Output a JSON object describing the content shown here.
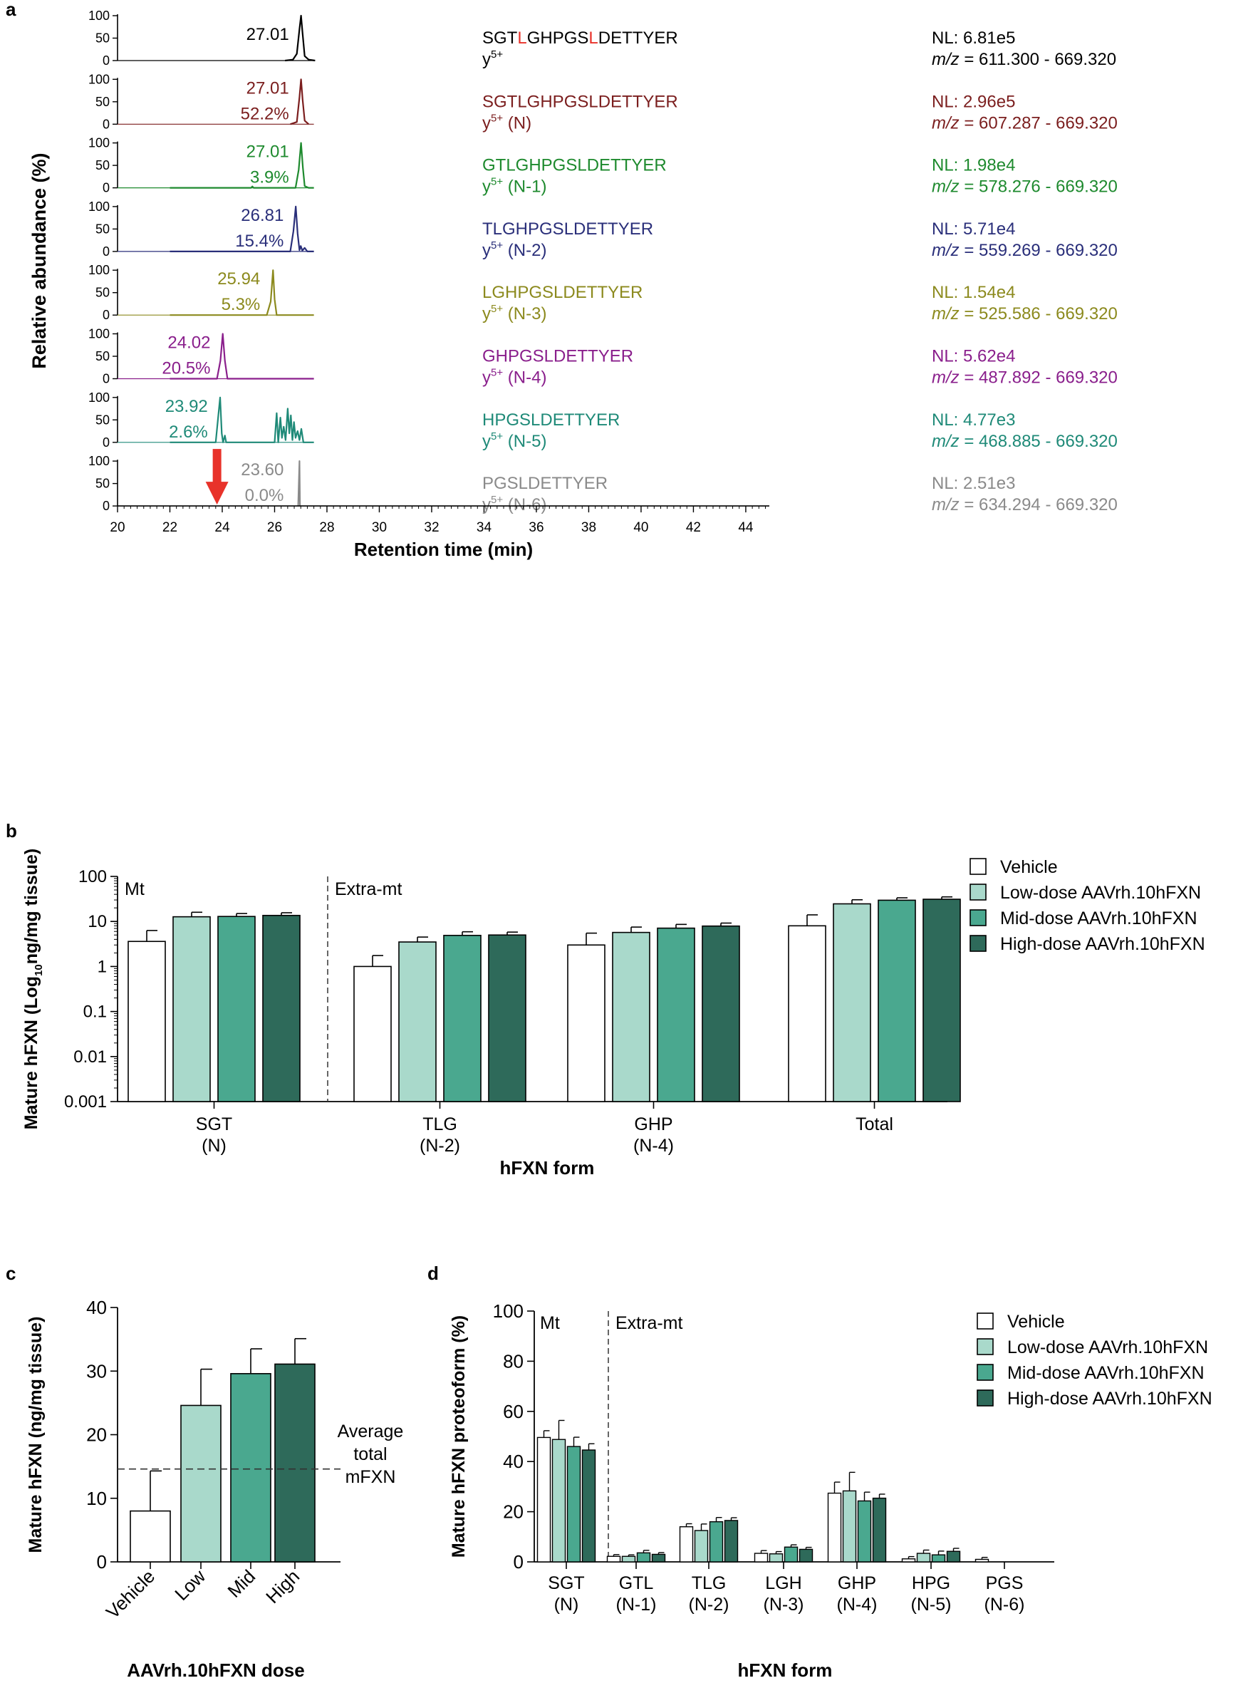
{
  "colors": {
    "axis": "#000000",
    "vehicle": "#ffffff",
    "low": "#a9d9cb",
    "mid": "#4aa88f",
    "high": "#2e6a5a",
    "arrow": "#e8322a",
    "highlight": "#e8322a"
  },
  "chart_data": [
    {
      "panel": "a",
      "type": "line",
      "xlabel": "Retention time (min)",
      "ylabel": "Relative abundance (%)",
      "xlim": [
        20,
        45
      ],
      "x_ticks": [
        "20",
        "22",
        "24",
        "26",
        "28",
        "30",
        "32",
        "34",
        "36",
        "38",
        "40",
        "42",
        "44"
      ],
      "y_ticks": [
        "0",
        "50",
        "100"
      ],
      "annotation": "red arrow at 23.8 min (missing N-6 peak)",
      "traces": [
        {
          "color": "#000000",
          "rt": "27.01",
          "pct": "",
          "peptide_parts": [
            {
              "t": "SGT"
            },
            {
              "t": "L",
              "hl": true
            },
            {
              "t": "GHPGS"
            },
            {
              "t": "L",
              "hl": true
            },
            {
              "t": "DETTYER"
            }
          ],
          "ion": "y",
          "charge": "5+",
          "form": "",
          "nl": "NL: 6.81e5",
          "mz_label": "m/z",
          "mz_range": " = 611.300 - 669.320",
          "label_x": 26.0,
          "peaks": [
            [
              26.4,
              0
            ],
            [
              26.7,
              2
            ],
            [
              26.85,
              15
            ],
            [
              26.95,
              70
            ],
            [
              27.01,
              100
            ],
            [
              27.07,
              60
            ],
            [
              27.15,
              10
            ],
            [
              27.3,
              2
            ],
            [
              27.55,
              0
            ]
          ]
        },
        {
          "color": "#7b1e1e",
          "rt": "27.01",
          "pct": "52.2%",
          "peptide_parts": [
            {
              "t": "SGTLGHPGSLDETTYER"
            }
          ],
          "ion": "y",
          "charge": "5+",
          "form": " (N)",
          "nl": "NL: 2.96e5",
          "mz_label": "m/z",
          "mz_range": " = 607.287 - 669.320",
          "label_x": 26.0,
          "peaks": [
            [
              26.6,
              0
            ],
            [
              26.85,
              5
            ],
            [
              26.95,
              60
            ],
            [
              27.01,
              100
            ],
            [
              27.07,
              55
            ],
            [
              27.15,
              8
            ],
            [
              27.3,
              0
            ]
          ]
        },
        {
          "color": "#1e8a2e",
          "rt": "27.01",
          "pct": "3.9%",
          "peptide_parts": [
            {
              "t": "GTLGHPGSLDETTYER"
            }
          ],
          "ion": "y",
          "charge": "5+",
          "form": " (N-1)",
          "nl": "NL: 1.98e4",
          "mz_label": "m/z",
          "mz_range": " = 578.276 - 669.320",
          "label_x": 26.0,
          "peaks": [
            [
              22.0,
              0
            ],
            [
              25.1,
              0
            ],
            [
              25.15,
              3
            ],
            [
              25.2,
              0
            ],
            [
              26.8,
              0
            ],
            [
              26.92,
              40
            ],
            [
              27.01,
              100
            ],
            [
              27.08,
              45
            ],
            [
              27.15,
              4
            ],
            [
              27.3,
              0
            ],
            [
              27.5,
              0
            ]
          ]
        },
        {
          "color": "#2a2f7a",
          "rt": "26.81",
          "pct": "15.4%",
          "peptide_parts": [
            {
              "t": "TLGHPGSLDETTYER"
            }
          ],
          "ion": "y",
          "charge": "5+",
          "form": " (N-2)",
          "nl": "NL: 5.71e4",
          "mz_label": "m/z",
          "mz_range": " = 559.269 - 669.320",
          "label_x": 25.8,
          "peaks": [
            [
              22.0,
              0
            ],
            [
              26.6,
              0
            ],
            [
              26.72,
              45
            ],
            [
              26.81,
              100
            ],
            [
              26.88,
              40
            ],
            [
              26.95,
              3
            ],
            [
              27.0,
              12
            ],
            [
              27.06,
              2
            ],
            [
              27.15,
              8
            ],
            [
              27.25,
              0
            ],
            [
              27.5,
              0
            ]
          ]
        },
        {
          "color": "#8c8a1e",
          "rt": "25.94",
          "pct": "5.3%",
          "peptide_parts": [
            {
              "t": "LGHPGSLDETTYER"
            }
          ],
          "ion": "y",
          "charge": "5+",
          "form": " (N-3)",
          "nl": "NL: 1.54e4",
          "mz_label": "m/z",
          "mz_range": " = 525.586 - 669.320",
          "label_x": 24.9,
          "peaks": [
            [
              22.0,
              0
            ],
            [
              25.7,
              0
            ],
            [
              25.85,
              30
            ],
            [
              25.94,
              100
            ],
            [
              26.0,
              35
            ],
            [
              26.08,
              0
            ],
            [
              27.5,
              0
            ]
          ]
        },
        {
          "color": "#8a1f8c",
          "rt": "24.02",
          "pct": "20.5%",
          "peptide_parts": [
            {
              "t": "GHPGSLDETTYER"
            }
          ],
          "ion": "y",
          "charge": "5+",
          "form": " (N-4)",
          "nl": "NL: 5.62e4",
          "mz_label": "m/z",
          "mz_range": " = 487.892 - 669.320",
          "label_x": 23.0,
          "peaks": [
            [
              22.0,
              0
            ],
            [
              23.8,
              0
            ],
            [
              23.93,
              40
            ],
            [
              24.02,
              100
            ],
            [
              24.1,
              40
            ],
            [
              24.2,
              0
            ],
            [
              27.5,
              0
            ]
          ]
        },
        {
          "color": "#1f8a78",
          "rt": "23.92",
          "pct": "2.6%",
          "peptide_parts": [
            {
              "t": "HPGSLDETTYER"
            }
          ],
          "ion": "y",
          "charge": "5+",
          "form": " (N-5)",
          "nl": "NL: 4.77e3",
          "mz_label": "m/z",
          "mz_range": " = 468.885 - 669.320",
          "label_x": 22.9,
          "peaks": [
            [
              22.0,
              0
            ],
            [
              23.75,
              0
            ],
            [
              23.85,
              60
            ],
            [
              23.92,
              100
            ],
            [
              23.98,
              20
            ],
            [
              24.03,
              0
            ],
            [
              24.1,
              15
            ],
            [
              24.15,
              0
            ],
            [
              26.0,
              0
            ],
            [
              26.08,
              65
            ],
            [
              26.14,
              0
            ],
            [
              26.22,
              55
            ],
            [
              26.28,
              10
            ],
            [
              26.35,
              35
            ],
            [
              26.42,
              5
            ],
            [
              26.5,
              75
            ],
            [
              26.56,
              20
            ],
            [
              26.62,
              60
            ],
            [
              26.68,
              5
            ],
            [
              26.74,
              45
            ],
            [
              26.8,
              10
            ],
            [
              26.88,
              25
            ],
            [
              26.95,
              5
            ],
            [
              27.02,
              30
            ],
            [
              27.1,
              0
            ],
            [
              27.5,
              0
            ]
          ]
        },
        {
          "color": "#8a8a8a",
          "rt": "23.60",
          "pct": "0.0%",
          "peptide_parts": [
            {
              "t": "PGSLDETTYER"
            }
          ],
          "ion": "y",
          "charge": "5+",
          "form": " (N-6)",
          "nl": "NL: 2.51e3",
          "mz_label": "m/z",
          "mz_range": " = 634.294 - 669.320",
          "label_x": 25.8,
          "peaks": [
            [
              26.9,
              0
            ],
            [
              26.95,
              100
            ],
            [
              26.97,
              0
            ]
          ]
        }
      ]
    },
    {
      "panel": "b",
      "type": "bar",
      "title": "",
      "xlabel": "hFXN form",
      "ylabel_parts": [
        "Mature hFXN (Log",
        "10",
        "ng/mg tissue)"
      ],
      "yscale": "log",
      "ylim": [
        0.001,
        100
      ],
      "y_ticks": [
        "0.001",
        "0.01",
        "0.1",
        "1",
        "10",
        "100"
      ],
      "region_labels": [
        "Mt",
        "Extra-mt"
      ],
      "categories": [
        [
          "SGT",
          "(N)"
        ],
        [
          "TLG",
          "(N-2)"
        ],
        [
          "GHP",
          "(N-4)"
        ],
        [
          "Total",
          ""
        ]
      ],
      "series": [
        {
          "name": "Vehicle",
          "values": [
            3.6,
            1.0,
            3.0,
            8.0
          ],
          "errors": [
            6.3,
            1.75,
            5.5,
            14.0
          ]
        },
        {
          "name": "Low-dose AAVrh.10hFXN",
          "values": [
            12.7,
            3.5,
            5.7,
            24.6
          ],
          "errors": [
            16.0,
            4.5,
            7.5,
            30.3
          ]
        },
        {
          "name": "Mid-dose AAVrh.10hFXN",
          "values": [
            12.9,
            4.9,
            7.1,
            29.6
          ],
          "errors": [
            15.0,
            5.9,
            8.6,
            33.5
          ]
        },
        {
          "name": "High-dose AAVrh.10hFXN",
          "values": [
            13.6,
            5.0,
            7.9,
            31.1
          ],
          "errors": [
            15.6,
            5.8,
            9.2,
            35.1
          ]
        }
      ]
    },
    {
      "panel": "c",
      "type": "bar",
      "xlabel": "AAVrh.10hFXN dose",
      "ylabel": "Mature hFXN (ng/mg tissue)",
      "ylim": [
        0,
        40
      ],
      "y_ticks": [
        "0",
        "10",
        "20",
        "30",
        "40"
      ],
      "categories": [
        "Vehicle",
        "Low",
        "Mid",
        "High"
      ],
      "values": [
        8.0,
        24.6,
        29.6,
        31.1
      ],
      "errors": [
        14.3,
        30.3,
        33.5,
        35.1
      ],
      "reference_line": {
        "value": 14.6,
        "label": [
          "Average",
          "total",
          "mFXN"
        ]
      }
    },
    {
      "panel": "d",
      "type": "bar",
      "xlabel": "hFXN form",
      "ylabel": "Mature hFXN proteoform (%)",
      "ylim": [
        0,
        100
      ],
      "y_ticks": [
        "0",
        "20",
        "40",
        "60",
        "80",
        "100"
      ],
      "region_labels": [
        "Mt",
        "Extra-mt"
      ],
      "categories": [
        [
          "SGT",
          "(N)"
        ],
        [
          "GTL",
          "(N-1)"
        ],
        [
          "TLG",
          "(N-2)"
        ],
        [
          "LGH",
          "(N-3)"
        ],
        [
          "GHP",
          "(N-4)"
        ],
        [
          "HPG",
          "(N-5)"
        ],
        [
          "PGS",
          "(N-6)"
        ]
      ],
      "series": [
        {
          "name": "Vehicle",
          "values": [
            49.6,
            2.2,
            14.0,
            3.4,
            27.4,
            1.2,
            1.0
          ],
          "errors": [
            52.3,
            2.9,
            15.2,
            4.5,
            31.8,
            2.1,
            1.8
          ]
        },
        {
          "name": "Low-dose AAVrh.10hFXN",
          "values": [
            48.8,
            2.2,
            12.5,
            3.2,
            28.3,
            3.4,
            0
          ],
          "errors": [
            56.4,
            2.8,
            15.1,
            4.1,
            35.7,
            4.7,
            0
          ]
        },
        {
          "name": "Mid-dose AAVrh.10hFXN",
          "values": [
            46.0,
            3.6,
            16.0,
            5.9,
            24.3,
            2.8,
            0
          ],
          "errors": [
            49.7,
            4.6,
            17.7,
            6.8,
            27.8,
            4.3,
            0
          ]
        },
        {
          "name": "High-dose AAVrh.10hFXN",
          "values": [
            44.6,
            3.0,
            16.5,
            5.0,
            25.4,
            4.2,
            0
          ],
          "errors": [
            47.1,
            3.7,
            17.6,
            5.8,
            27.0,
            5.4,
            0
          ]
        }
      ]
    }
  ],
  "panels": {
    "a": "a",
    "b": "b",
    "c": "c",
    "d": "d"
  }
}
